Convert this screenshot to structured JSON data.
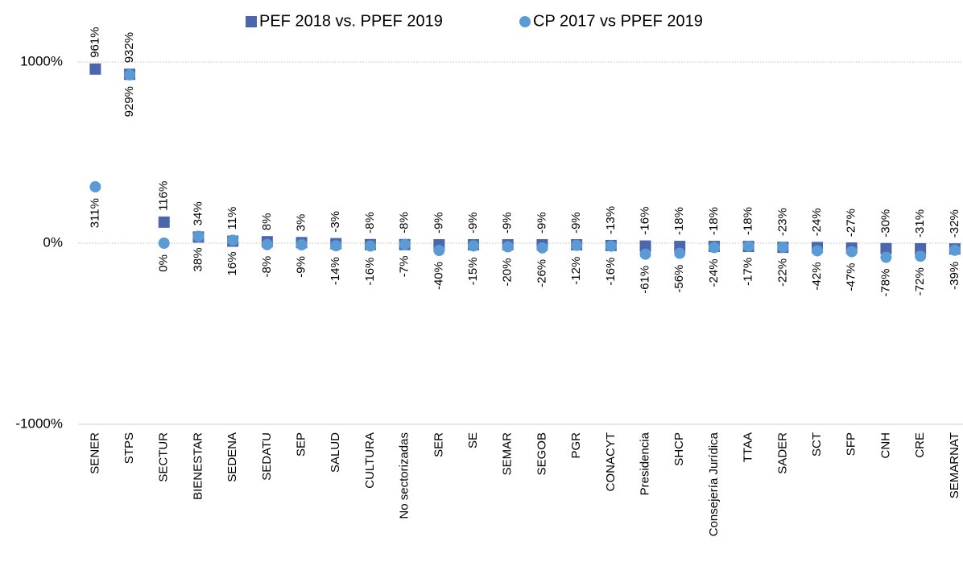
{
  "chart_data": {
    "type": "scatter",
    "categories": [
      "SENER",
      "STPS",
      "SECTUR",
      "BIENESTAR",
      "SEDENA",
      "SEDATU",
      "SEP",
      "SALUD",
      "CULTURA",
      "No sectorizadas",
      "SER",
      "SE",
      "SEMAR",
      "SEGOB",
      "PGR",
      "CONACYT",
      "Presidencia",
      "SHCP",
      "Consejería Jurídica",
      "TTAA",
      "SADER",
      "SCT",
      "SFP",
      "CNH",
      "CRE",
      "SEMARNAT"
    ],
    "series": [
      {
        "name": "PEF 2018 vs. PPEF 2019",
        "color": "#4a66ac",
        "marker": "square",
        "values": [
          961,
          932,
          116,
          34,
          11,
          8,
          3,
          -3,
          -8,
          -8,
          -9,
          -9,
          -9,
          -9,
          -9,
          -13,
          -16,
          -18,
          -18,
          -18,
          -23,
          -24,
          -27,
          -30,
          -31,
          -32
        ],
        "value_labels": [
          "961%",
          "932%",
          "116%",
          "34%",
          "11%",
          "8%",
          "3%",
          "-3%",
          "-8%",
          "-8%",
          "-9%",
          "-9%",
          "-9%",
          "-9%",
          "-9%",
          "-13%",
          "-16%",
          "-18%",
          "-18%",
          "-18%",
          "-23%",
          "-24%",
          "-27%",
          "-30%",
          "-31%",
          "-32%"
        ]
      },
      {
        "name": "CP 2017 vs PPEF 2019",
        "color": "#5b9bd5",
        "marker": "circle",
        "values": [
          311,
          929,
          0,
          38,
          16,
          -8,
          -9,
          -14,
          -16,
          -7,
          -40,
          -15,
          -20,
          -26,
          -12,
          -16,
          -61,
          -56,
          -24,
          -17,
          -22,
          -42,
          -47,
          -78,
          -72,
          -39
        ],
        "value_labels": [
          "311%",
          "929%",
          "0%",
          "38%",
          "16%",
          "-8%",
          "-9%",
          "-14%",
          "-16%",
          "-7%",
          "-40%",
          "-15%",
          "-20%",
          "-26%",
          "-12%",
          "-16%",
          "-61%",
          "-56%",
          "-24%",
          "-17%",
          "-22%",
          "-42%",
          "-47%",
          "-78%",
          "-72%",
          "-39%"
        ]
      }
    ],
    "ylim": [
      -1000,
      1300
    ],
    "yticks": [
      {
        "value": -1000,
        "label": "-1000%"
      },
      {
        "value": 0,
        "label": "0%"
      },
      {
        "value": 1000,
        "label": "1000%"
      }
    ],
    "grid": true,
    "legend": "top"
  }
}
